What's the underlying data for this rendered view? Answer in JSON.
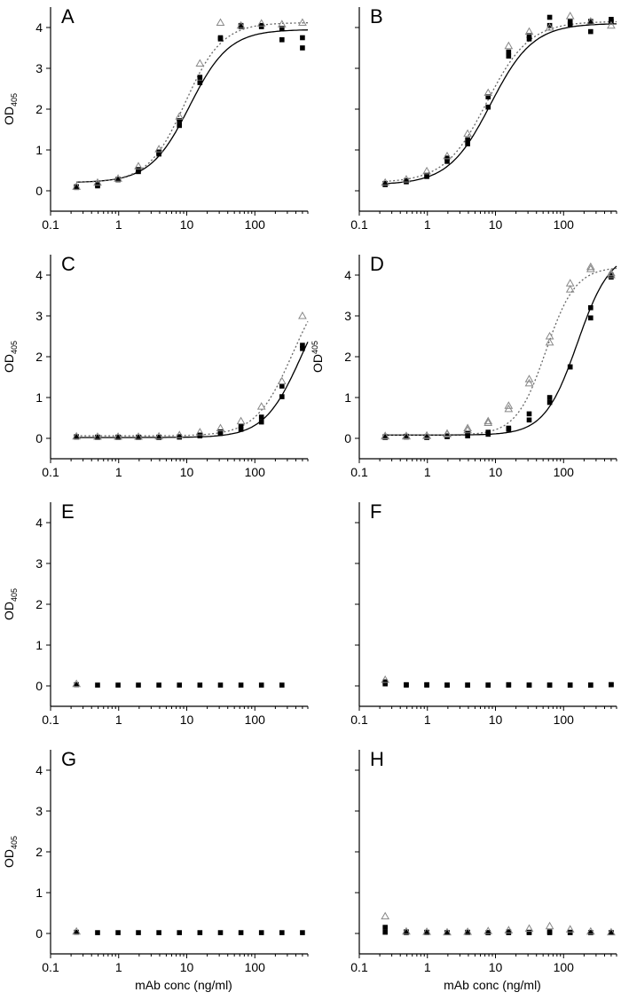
{
  "chart_data": [
    {
      "type": "scatter",
      "panel": "A",
      "ylabel": "OD",
      "ylabel_sub": "405",
      "xlabel": "",
      "xscale": "log",
      "xlim": [
        0.1,
        600
      ],
      "ylim": [
        -0.5,
        4.5
      ],
      "xticks": [
        0.1,
        1,
        10,
        100
      ],
      "xtick_labels": [
        "0.1",
        "1",
        "10",
        "100"
      ],
      "yticks": [
        0,
        1,
        2,
        3,
        4
      ],
      "ytick_labels": [
        "0",
        "1",
        "2",
        "3",
        "4"
      ],
      "series": [
        {
          "marker": "filled-square",
          "line": "solid",
          "x": [
            0.24,
            0.49,
            0.98,
            1.95,
            3.9,
            7.8,
            15.6,
            31.25,
            62.5,
            125,
            250,
            500
          ],
          "y": [
            0.08,
            0.12,
            0.27,
            0.47,
            0.9,
            1.6,
            2.65,
            3.72,
            4.02,
            4.02,
            3.7,
            3.5
          ],
          "y2": [
            0.1,
            0.15,
            0.28,
            0.52,
            0.95,
            1.72,
            2.78,
            3.75,
            4.05,
            4.05,
            3.98,
            3.75
          ]
        },
        {
          "marker": "open-triangle",
          "line": "dotted",
          "x": [
            0.24,
            0.49,
            0.98,
            1.95,
            3.9,
            7.8,
            15.6,
            31.25,
            62.5,
            125,
            250,
            500
          ],
          "y": [
            0.1,
            0.2,
            0.3,
            0.6,
            1.02,
            1.82,
            3.12,
            4.12,
            4.05,
            4.1,
            4.08,
            4.12
          ]
        }
      ],
      "fits": [
        {
          "style": "solid",
          "bottom": 0.2,
          "top": 3.95,
          "ec50": 11,
          "hill": 1.5
        },
        {
          "style": "dotted",
          "bottom": 0.2,
          "top": 4.12,
          "ec50": 9.5,
          "hill": 1.6
        }
      ]
    },
    {
      "type": "scatter",
      "panel": "B",
      "ylabel": "",
      "xlabel": "",
      "xscale": "log",
      "xlim": [
        0.1,
        600
      ],
      "ylim": [
        -0.5,
        4.5
      ],
      "xticks": [
        0.1,
        1,
        10,
        100
      ],
      "xtick_labels": [
        "0.1",
        "1",
        "10",
        "100"
      ],
      "yticks": [
        0,
        1,
        2,
        3,
        4
      ],
      "ytick_labels": [],
      "series": [
        {
          "marker": "filled-square",
          "line": "solid",
          "x": [
            0.24,
            0.49,
            0.98,
            1.95,
            3.9,
            7.8,
            15.6,
            31.25,
            62.5,
            125,
            250,
            500
          ],
          "y": [
            0.15,
            0.22,
            0.35,
            0.72,
            1.15,
            2.05,
            3.3,
            3.72,
            4.05,
            4.08,
            3.9,
            4.15
          ],
          "y2": [
            0.18,
            0.25,
            0.38,
            0.8,
            1.25,
            2.3,
            3.4,
            3.8,
            4.25,
            4.15,
            4.15,
            4.2
          ]
        },
        {
          "marker": "open-triangle",
          "line": "dotted",
          "x": [
            0.24,
            0.49,
            0.98,
            1.95,
            3.9,
            7.8,
            15.6,
            31.25,
            62.5,
            125,
            250,
            500
          ],
          "y": [
            0.2,
            0.28,
            0.48,
            0.85,
            1.4,
            2.4,
            3.55,
            3.9,
            4.0,
            4.28,
            4.15,
            4.05
          ]
        }
      ],
      "fits": [
        {
          "style": "solid",
          "bottom": 0.15,
          "top": 4.1,
          "ec50": 8.5,
          "hill": 1.4
        },
        {
          "style": "dotted",
          "bottom": 0.2,
          "top": 4.15,
          "ec50": 7.5,
          "hill": 1.4
        }
      ]
    },
    {
      "type": "scatter",
      "panel": "C",
      "ylabel": "OD",
      "ylabel_sub": "405",
      "xlabel": "",
      "xscale": "log",
      "xlim": [
        0.1,
        600
      ],
      "ylim": [
        -0.5,
        4.5
      ],
      "xticks": [
        0.1,
        1,
        10,
        100
      ],
      "xtick_labels": [
        "0.1",
        "1",
        "10",
        "100"
      ],
      "yticks": [
        0,
        1,
        2,
        3,
        4
      ],
      "ytick_labels": [
        "0",
        "1",
        "2",
        "3",
        "4"
      ],
      "series": [
        {
          "marker": "filled-square",
          "line": "solid",
          "x": [
            0.24,
            0.49,
            0.98,
            1.95,
            3.9,
            7.8,
            15.6,
            31.25,
            62.5,
            125,
            250,
            500
          ],
          "y": [
            0.03,
            0.02,
            0.02,
            0.02,
            0.02,
            0.03,
            0.06,
            0.12,
            0.22,
            0.4,
            1.02,
            2.2
          ],
          "y2": [
            0.04,
            0.03,
            0.03,
            0.03,
            0.03,
            0.04,
            0.08,
            0.16,
            0.3,
            0.52,
            1.28,
            2.28
          ]
        },
        {
          "marker": "open-triangle",
          "line": "dotted",
          "x": [
            0.24,
            0.49,
            0.98,
            1.95,
            3.9,
            7.8,
            15.6,
            31.25,
            62.5,
            125,
            250,
            500
          ],
          "y": [
            0.05,
            0.04,
            0.04,
            0.04,
            0.05,
            0.08,
            0.15,
            0.25,
            0.42,
            0.78,
            1.4,
            3.0
          ]
        }
      ],
      "fits": [
        {
          "style": "solid",
          "bottom": 0.02,
          "top": 4.0,
          "ec50": 480,
          "hill": 1.6
        },
        {
          "style": "dotted",
          "bottom": 0.06,
          "top": 4.1,
          "ec50": 360,
          "hill": 1.6
        }
      ]
    },
    {
      "type": "scatter",
      "panel": "D",
      "ylabel": "OD",
      "ylabel_sup": "405",
      "xlabel": "",
      "xscale": "log",
      "xlim": [
        0.1,
        600
      ],
      "ylim": [
        -0.5,
        4.5
      ],
      "xticks": [
        0.1,
        1,
        10,
        100
      ],
      "xtick_labels": [
        "0.1",
        "1",
        "10",
        "100"
      ],
      "yticks": [
        0,
        1,
        2,
        3,
        4
      ],
      "ytick_labels": [
        "0",
        "1",
        "2",
        "3",
        "4"
      ],
      "series": [
        {
          "marker": "filled-square",
          "line": "solid",
          "x": [
            0.24,
            0.49,
            0.98,
            1.95,
            3.9,
            7.8,
            15.6,
            31.25,
            62.5,
            125,
            250,
            500
          ],
          "y": [
            0.02,
            0.03,
            0.02,
            0.04,
            0.06,
            0.1,
            0.22,
            0.45,
            0.88,
            1.75,
            2.95,
            3.95
          ],
          "y2": [
            0.04,
            0.05,
            0.04,
            0.06,
            0.12,
            0.15,
            0.25,
            0.6,
            1.0,
            1.75,
            3.2,
            4.0
          ]
        },
        {
          "marker": "open-triangle",
          "line": "dotted",
          "x": [
            0.24,
            0.49,
            0.98,
            1.95,
            3.9,
            7.8,
            15.6,
            31.25,
            62.5,
            125,
            250,
            500
          ],
          "y": [
            0.05,
            0.05,
            0.06,
            0.1,
            0.2,
            0.38,
            0.72,
            1.35,
            2.5,
            3.8,
            4.2,
            4.0
          ],
          "y2": [
            0.06,
            0.06,
            0.07,
            0.12,
            0.25,
            0.42,
            0.8,
            1.45,
            2.35,
            3.65,
            4.15,
            4.05
          ]
        }
      ],
      "fits": [
        {
          "style": "solid",
          "bottom": 0.08,
          "top": 4.6,
          "ec50": 160,
          "hill": 1.8
        },
        {
          "style": "dotted",
          "bottom": 0.08,
          "top": 4.2,
          "ec50": 55,
          "hill": 2.0
        }
      ]
    },
    {
      "type": "scatter",
      "panel": "E",
      "ylabel": "OD",
      "ylabel_sub": "405",
      "xlabel": "",
      "xscale": "log",
      "xlim": [
        0.1,
        600
      ],
      "ylim": [
        -0.5,
        4.5
      ],
      "xticks": [
        0.1,
        1,
        10,
        100
      ],
      "xtick_labels": [
        "0.1",
        "1",
        "10",
        "100"
      ],
      "yticks": [
        0,
        1,
        2,
        3,
        4
      ],
      "ytick_labels": [
        "0",
        "1",
        "2",
        "3",
        "4"
      ],
      "series": [
        {
          "marker": "filled-square",
          "line": "none",
          "x": [
            0.24,
            0.49,
            0.98,
            1.95,
            3.9,
            7.8,
            15.6,
            31.25,
            62.5,
            125,
            250
          ],
          "y": [
            0.03,
            0.02,
            0.02,
            0.02,
            0.02,
            0.02,
            0.02,
            0.02,
            0.02,
            0.02,
            0.02
          ]
        },
        {
          "marker": "open-triangle",
          "line": "none",
          "x": [
            0.24
          ],
          "y": [
            0.05
          ]
        }
      ],
      "fits": []
    },
    {
      "type": "scatter",
      "panel": "F",
      "ylabel": "",
      "xlabel": "",
      "xscale": "log",
      "xlim": [
        0.1,
        600
      ],
      "ylim": [
        -0.5,
        4.5
      ],
      "xticks": [
        0.1,
        1,
        10,
        100
      ],
      "xtick_labels": [
        "0.1",
        "1",
        "10",
        "100"
      ],
      "yticks": [
        0,
        1,
        2,
        3,
        4
      ],
      "ytick_labels": [],
      "series": [
        {
          "marker": "filled-square",
          "line": "none",
          "x": [
            0.24,
            0.49,
            0.98,
            1.95,
            3.9,
            7.8,
            15.6,
            31.25,
            62.5,
            125,
            250,
            500
          ],
          "y": [
            0.05,
            0.02,
            0.02,
            0.02,
            0.02,
            0.02,
            0.02,
            0.02,
            0.02,
            0.02,
            0.02,
            0.03
          ],
          "y2": [
            0.1,
            0.03,
            0.03,
            0.02,
            0.02,
            0.02,
            0.03,
            0.02,
            0.02,
            0.02,
            0.02,
            0.03
          ]
        },
        {
          "marker": "open-triangle",
          "line": "none",
          "x": [
            0.24
          ],
          "y": [
            0.15
          ]
        }
      ],
      "fits": []
    },
    {
      "type": "scatter",
      "panel": "G",
      "ylabel": "OD",
      "ylabel_sub": "405",
      "xlabel": "mAb conc (ng/ml)",
      "xscale": "log",
      "xlim": [
        0.1,
        600
      ],
      "ylim": [
        -0.5,
        4.5
      ],
      "xticks": [
        0.1,
        1,
        10,
        100
      ],
      "xtick_labels": [
        "0.1",
        "1",
        "10",
        "100"
      ],
      "yticks": [
        0,
        1,
        2,
        3,
        4
      ],
      "ytick_labels": [
        "0",
        "1",
        "2",
        "3",
        "4"
      ],
      "series": [
        {
          "marker": "filled-square",
          "line": "none",
          "x": [
            0.24,
            0.49,
            0.98,
            1.95,
            3.9,
            7.8,
            15.6,
            31.25,
            62.5,
            125,
            250,
            500
          ],
          "y": [
            0.03,
            0.02,
            0.02,
            0.02,
            0.02,
            0.02,
            0.02,
            0.02,
            0.02,
            0.02,
            0.02,
            0.02
          ]
        },
        {
          "marker": "open-triangle",
          "line": "none",
          "x": [
            0.24
          ],
          "y": [
            0.05
          ]
        }
      ],
      "fits": []
    },
    {
      "type": "scatter",
      "panel": "H",
      "ylabel": "",
      "xlabel": "mAb conc (ng/ml)",
      "xscale": "log",
      "xlim": [
        0.1,
        600
      ],
      "ylim": [
        -0.5,
        4.5
      ],
      "xticks": [
        0.1,
        1,
        10,
        100
      ],
      "xtick_labels": [
        "0.1",
        "1",
        "10",
        "100"
      ],
      "yticks": [
        0,
        1,
        2,
        3,
        4
      ],
      "ytick_labels": [],
      "series": [
        {
          "marker": "filled-square",
          "line": "none",
          "x": [
            0.24,
            0.49,
            0.98,
            1.95,
            3.9,
            7.8,
            15.6,
            31.25,
            62.5,
            125,
            250,
            500
          ],
          "y": [
            0.03,
            0.02,
            0.02,
            0.02,
            0.02,
            0.02,
            0.02,
            0.02,
            0.02,
            0.02,
            0.02,
            0.02
          ],
          "y2": [
            0.15,
            0.04,
            0.03,
            0.02,
            0.03,
            0.02,
            0.04,
            0.03,
            0.04,
            0.03,
            0.02,
            0.02
          ]
        },
        {
          "marker": "open-triangle",
          "line": "none",
          "x": [
            0.24,
            0.49,
            0.98,
            1.95,
            3.9,
            7.8,
            15.6,
            31.25,
            62.5,
            125,
            250,
            500
          ],
          "y": [
            0.42,
            0.05,
            0.04,
            0.03,
            0.04,
            0.06,
            0.08,
            0.12,
            0.18,
            0.1,
            0.05,
            0.03
          ]
        }
      ],
      "fits": []
    }
  ]
}
